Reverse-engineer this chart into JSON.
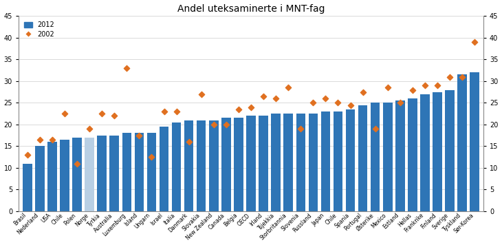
{
  "title": "Andel uteksaminerte i MNT-fag",
  "categories_display": [
    "Brasil",
    "Nederland",
    "USA",
    "Chile",
    "Polen",
    "Norge",
    "Tyrkia",
    "Australia",
    "Luxemburg",
    "Island",
    "Ungarn",
    "Israel",
    "Italia",
    "Danmark",
    "Slovakia",
    "New Zealand",
    "Canada",
    "Belgia",
    "OECD",
    "Irland",
    "Tsjekkia",
    "Storbritannia",
    "Slovenia",
    "Russland",
    "Japan",
    "Chile",
    "Spania",
    "Portugal",
    "Østerike",
    "Mexico",
    "Estland",
    "Hellas",
    "Frankrike",
    "Finland",
    "Sverige",
    "Tyskland",
    "Sør-Korea"
  ],
  "bar_2012": [
    11,
    15,
    16,
    16.5,
    17,
    17,
    17.5,
    17.5,
    18,
    18,
    18,
    19.5,
    20.5,
    21,
    21,
    21,
    21.5,
    21.5,
    22,
    22,
    22.5,
    22.5,
    22.5,
    22.5,
    23,
    23,
    23.5,
    24.5,
    25,
    25,
    25.5,
    26,
    27,
    27.5,
    28,
    31.5,
    32
  ],
  "dot_2002": [
    13,
    16.5,
    16.5,
    22.5,
    11,
    19,
    22.5,
    22,
    33,
    17.5,
    12.5,
    23,
    23,
    16,
    27,
    20,
    20,
    23.5,
    24,
    26.5,
    26,
    28.5,
    19,
    25,
    26,
    25,
    24.5,
    27.5,
    19,
    28.5,
    25,
    28,
    29,
    29,
    31,
    31,
    39
  ],
  "bar_color_normal": "#2e75b6",
  "bar_color_special": "#b8cfe4",
  "dot_color": "#e07020",
  "ylim": [
    0,
    45
  ],
  "yticks": [
    0,
    5,
    10,
    15,
    20,
    25,
    30,
    35,
    40,
    45
  ],
  "special_bar_index": 5,
  "figwidth": 7.3,
  "figheight": 3.56,
  "dpi": 100
}
